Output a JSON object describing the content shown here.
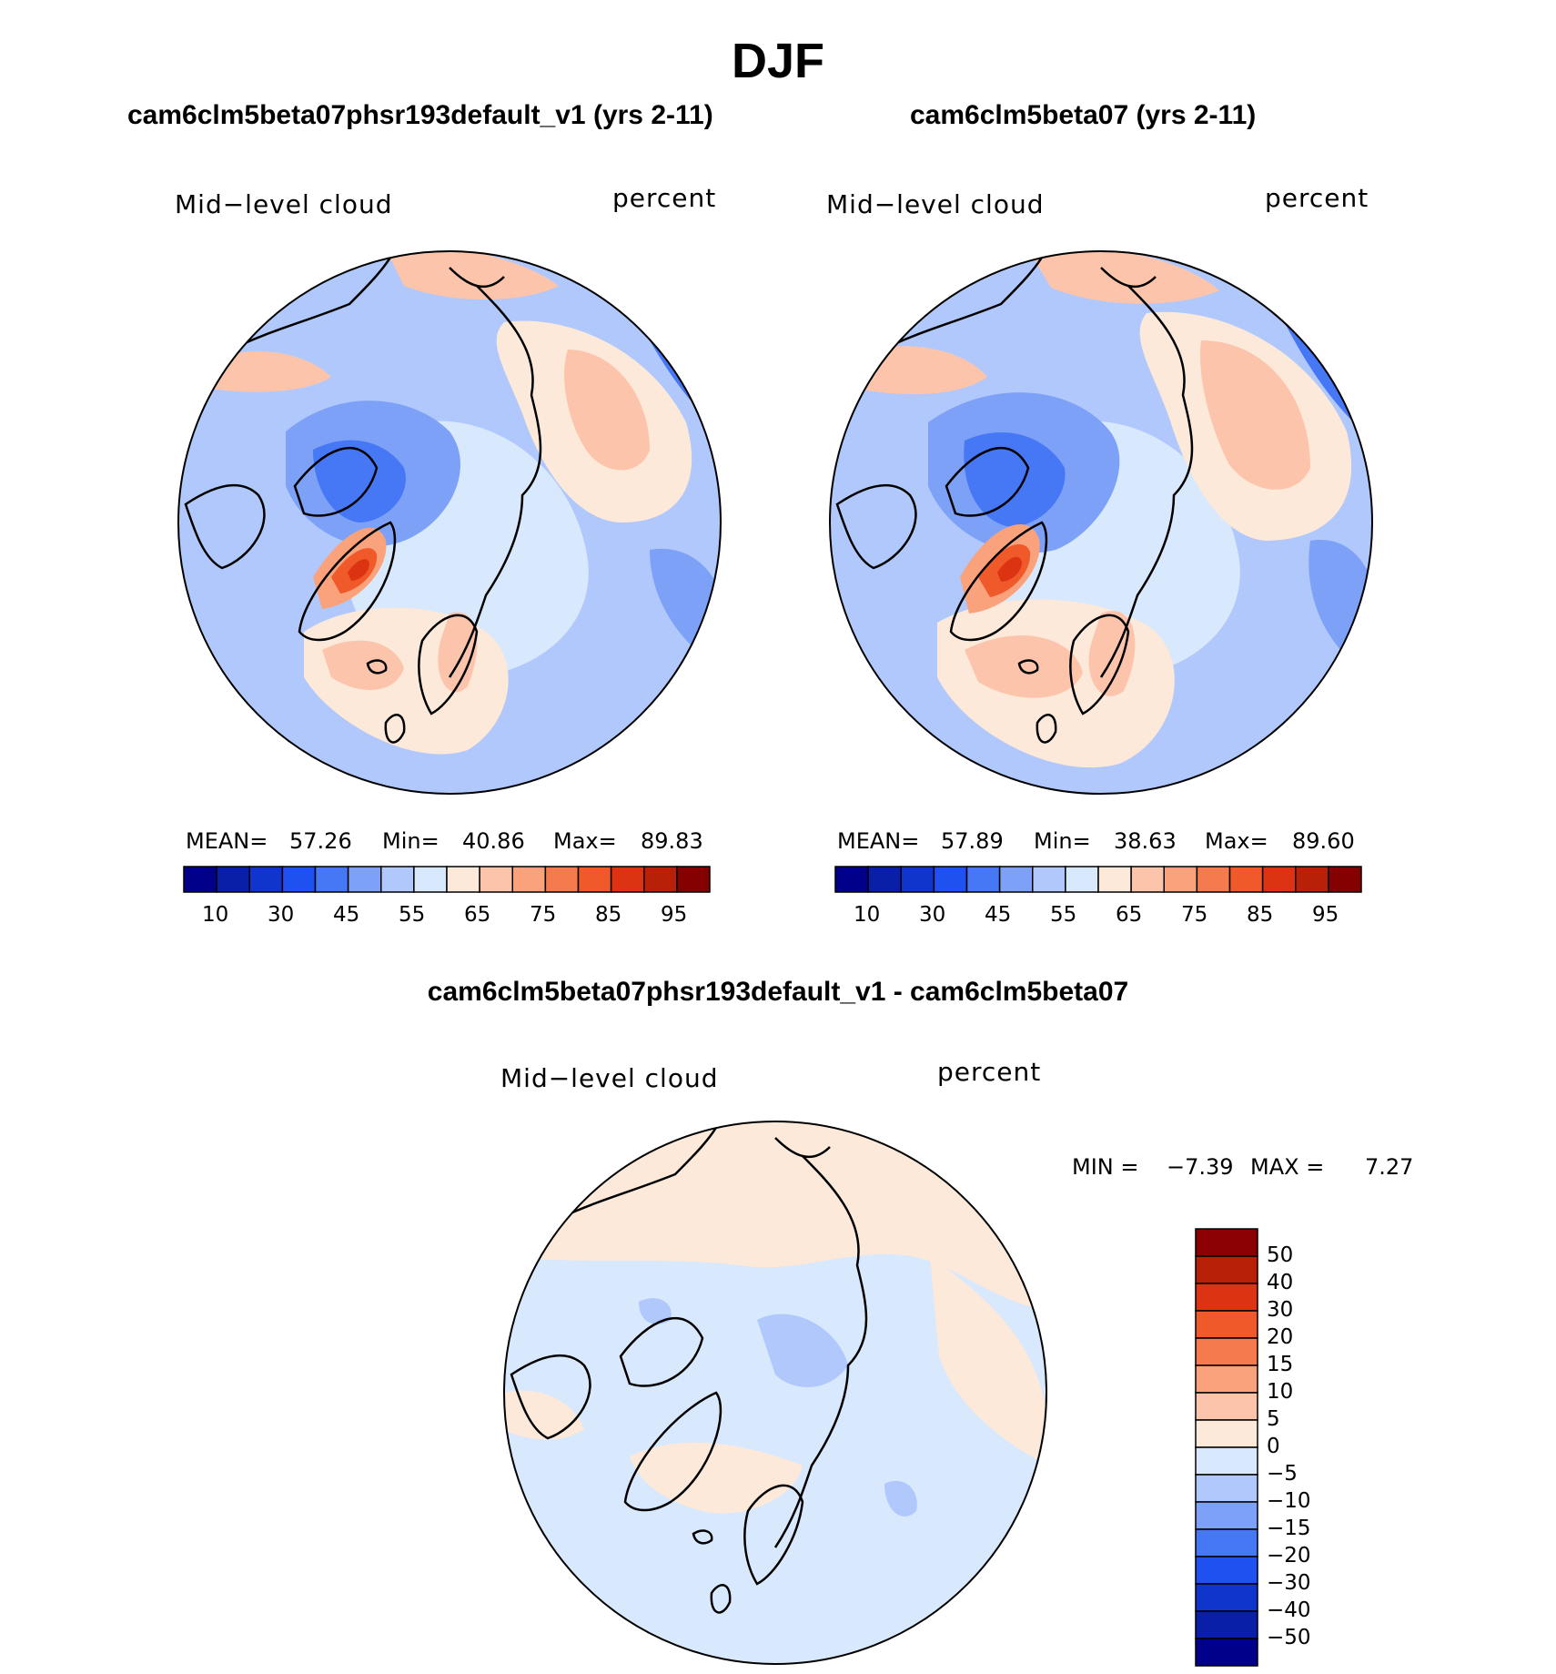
{
  "title": "DJF",
  "panels": [
    {
      "title": "cam6clm5beta07phsr193default_v1 (yrs 2-11)",
      "variable": "Mid−level cloud",
      "units": "percent",
      "stats": {
        "mean_label": "MEAN=",
        "mean": "57.26",
        "min_label": "Min=",
        "min": "40.86",
        "max_label": "Max=",
        "max": "89.83"
      }
    },
    {
      "title": "cam6clm5beta07 (yrs 2-11)",
      "variable": "Mid−level cloud",
      "units": "percent",
      "stats": {
        "mean_label": "MEAN=",
        "mean": "57.89",
        "min_label": "Min=",
        "min": "38.63",
        "max_label": "Max=",
        "max": "89.60"
      }
    }
  ],
  "diff_panel": {
    "title": "cam6clm5beta07phsr193default_v1 - cam6clm5beta07",
    "variable": "Mid−level cloud",
    "units": "percent",
    "stats": {
      "min_label": "MIN =",
      "min": "−7.39",
      "max_label": "MAX =",
      "max": "7.27"
    }
  },
  "colorbar_main": {
    "colors": [
      "#00008b",
      "#0a1fa8",
      "#0f35cc",
      "#1f50f0",
      "#4677f5",
      "#7ea1f8",
      "#b0c8fb",
      "#d8e8fd",
      "#fde9da",
      "#fcc5ab",
      "#f9a27c",
      "#f57b4e",
      "#f0592a",
      "#dc3412",
      "#b82107",
      "#850000"
    ],
    "tick_labels": [
      "10",
      "30",
      "45",
      "55",
      "65",
      "75",
      "85",
      "95"
    ]
  },
  "colorbar_diff": {
    "colors_top_to_bottom": [
      "#8b0000",
      "#b82107",
      "#dc3412",
      "#f0592a",
      "#f57b4e",
      "#f9a27c",
      "#fcc5ab",
      "#fde9da",
      "#d8e8fd",
      "#b0c8fb",
      "#7ea1f8",
      "#4677f5",
      "#1f50f0",
      "#0f35cc",
      "#0a1fa8",
      "#00008b"
    ],
    "tick_labels": [
      "50",
      "40",
      "30",
      "20",
      "15",
      "10",
      "5",
      "0",
      "−5",
      "−10",
      "−15",
      "−20",
      "−30",
      "−40",
      "−50"
    ]
  },
  "map_colors": {
    "ocean_low": "#7ea1f8",
    "deep_blue": "#4677f5",
    "light_blue": "#b0c8fb",
    "pale_blue": "#d8e8fd",
    "pale_orange": "#fde9da",
    "light_orange": "#fcc5ab",
    "orange": "#f9a27c",
    "red_orange": "#f0592a",
    "dark_red": "#dc3412",
    "coast": "#000000"
  }
}
